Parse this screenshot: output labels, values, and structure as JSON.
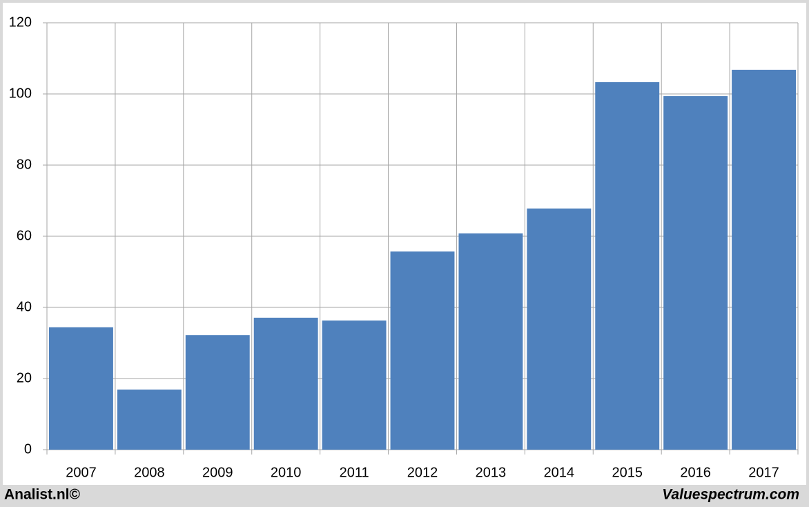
{
  "chart_data": {
    "type": "bar",
    "categories": [
      "2007",
      "2008",
      "2009",
      "2010",
      "2011",
      "2012",
      "2013",
      "2014",
      "2015",
      "2016",
      "2017"
    ],
    "values": [
      34.4,
      16.9,
      32.2,
      37.1,
      36.3,
      55.7,
      60.8,
      67.8,
      103.3,
      99.4,
      106.8
    ],
    "color": "#4f81bd",
    "ylim": [
      0,
      120
    ],
    "yticks": [
      0,
      20,
      40,
      60,
      80,
      100,
      120
    ],
    "grid": true,
    "source_left": "Analist.nl©",
    "source_right": "Valuespectrum.com"
  }
}
